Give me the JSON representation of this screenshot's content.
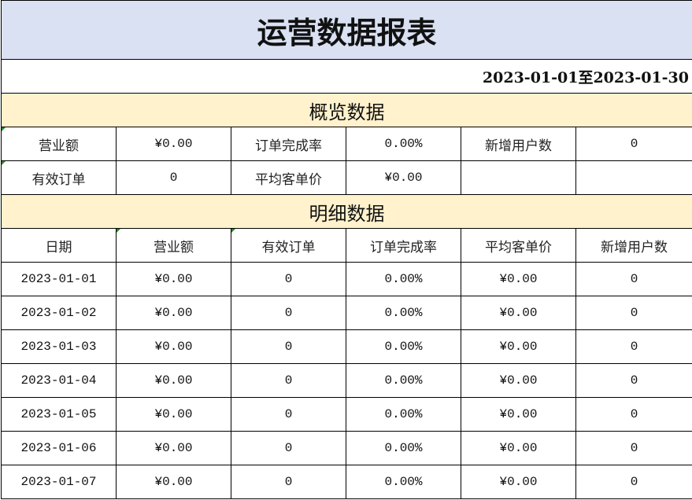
{
  "title": "运营数据报表",
  "date_range": "2023-01-01至2023-01-30",
  "overview": {
    "section_title": "概览数据",
    "rows": [
      [
        {
          "label": "营业额",
          "value": "¥0.00"
        },
        {
          "label": "订单完成率",
          "value": "0.00%"
        },
        {
          "label": "新增用户数",
          "value": "0"
        }
      ],
      [
        {
          "label": "有效订单",
          "value": "0"
        },
        {
          "label": "平均客单价",
          "value": "¥0.00"
        },
        {
          "label": "",
          "value": ""
        }
      ]
    ]
  },
  "detail": {
    "section_title": "明细数据",
    "columns": [
      "日期",
      "营业额",
      "有效订单",
      "订单完成率",
      "平均客单价",
      "新增用户数"
    ],
    "rows": [
      [
        "2023-01-01",
        "¥0.00",
        "0",
        "0.00%",
        "¥0.00",
        "0"
      ],
      [
        "2023-01-02",
        "¥0.00",
        "0",
        "0.00%",
        "¥0.00",
        "0"
      ],
      [
        "2023-01-03",
        "¥0.00",
        "0",
        "0.00%",
        "¥0.00",
        "0"
      ],
      [
        "2023-01-04",
        "¥0.00",
        "0",
        "0.00%",
        "¥0.00",
        "0"
      ],
      [
        "2023-01-05",
        "¥0.00",
        "0",
        "0.00%",
        "¥0.00",
        "0"
      ],
      [
        "2023-01-06",
        "¥0.00",
        "0",
        "0.00%",
        "¥0.00",
        "0"
      ],
      [
        "2023-01-07",
        "¥0.00",
        "0",
        "0.00%",
        "¥0.00",
        "0"
      ]
    ]
  },
  "colors": {
    "title_bg": "#d9e1f2",
    "section_bg": "#fff2cc",
    "comment_marker": "#1e8c1e"
  }
}
